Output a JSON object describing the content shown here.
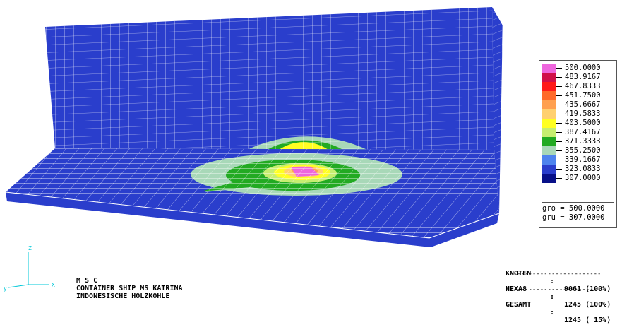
{
  "legend": {
    "items": [
      {
        "value": "500.0000",
        "color": "#ee66dd"
      },
      {
        "value": "483.9167",
        "color": "#d0104a"
      },
      {
        "value": "467.8333",
        "color": "#ff1a1a"
      },
      {
        "value": "451.7500",
        "color": "#ff6a2a"
      },
      {
        "value": "435.6667",
        "color": "#ffa050"
      },
      {
        "value": "419.5833",
        "color": "#ffd070"
      },
      {
        "value": "403.5000",
        "color": "#ffff22"
      },
      {
        "value": "387.4167",
        "color": "#c6ee70"
      },
      {
        "value": "371.3333",
        "color": "#22aa22"
      },
      {
        "value": "355.2500",
        "color": "#a8d8b8"
      },
      {
        "value": "339.1667",
        "color": "#4e84ee"
      },
      {
        "value": "323.0833",
        "color": "#2a3ecc"
      },
      {
        "value": "307.0000",
        "color": "#081088"
      }
    ],
    "gro_label": "gro = 500.0000",
    "gru_label": "gru = 307.0000"
  },
  "info": {
    "line1": "M S C",
    "line2": "CONTAINER SHIP MS KATRINA",
    "line3": "INDONESISCHE HOLZKOHLE"
  },
  "stats": {
    "rows": [
      {
        "name": "KNOTEN",
        "value": "9061 (100%)"
      },
      {
        "name": "HEXA8",
        "value": "1245 (100%)"
      },
      {
        "name": "GESAMT",
        "value": "1245 ( 15%)"
      }
    ],
    "separator": "-------------------------"
  },
  "axes": {
    "x_label": "X",
    "y_label": "y",
    "z_label": "Z"
  },
  "colors": {
    "mesh_base": "#2a3ecc",
    "mesh_line": "#ffffff"
  }
}
